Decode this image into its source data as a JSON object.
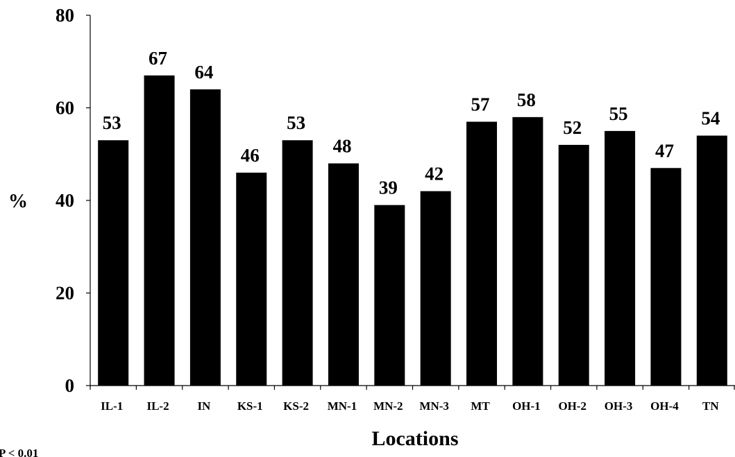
{
  "chart_data": {
    "type": "bar",
    "title": "",
    "xlabel": "Locations",
    "ylabel": "%",
    "footnote": "P < 0.01",
    "categories": [
      "IL-1",
      "IL-2",
      "IN",
      "KS-1",
      "KS-2",
      "MN-1",
      "MN-2",
      "MN-3",
      "MT",
      "OH-1",
      "OH-2",
      "OH-3",
      "OH-4",
      "TN"
    ],
    "values": [
      53,
      67,
      64,
      46,
      53,
      48,
      39,
      42,
      57,
      58,
      52,
      55,
      47,
      54
    ],
    "value_labels": [
      "53",
      "67",
      "64",
      "46",
      "53",
      "48",
      "39",
      "42",
      "57",
      "58",
      "52",
      "55",
      "47",
      "54"
    ],
    "ylim": [
      0,
      80
    ],
    "yticks": [
      0,
      20,
      40,
      60,
      80
    ],
    "ytick_labels": [
      "0",
      "20",
      "40",
      "60",
      "80"
    ],
    "bar_color": "#000000",
    "grid": false,
    "legend": "none"
  }
}
